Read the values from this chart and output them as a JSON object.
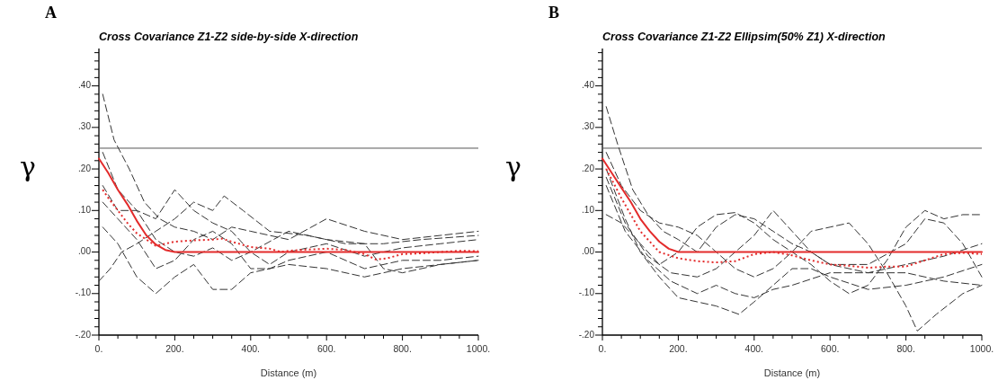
{
  "chart_data": [
    {
      "type": "line",
      "title": "Cross Covariance Z1-Z2 side-by-side X-direction",
      "xlabel": "Distance (m)",
      "ylabel": "γ",
      "annotations": [
        "A"
      ],
      "xlim": [
        0,
        1000
      ],
      "ylim": [
        -0.2,
        0.49
      ],
      "xticks": [
        {
          "value": 0,
          "label": "0."
        },
        {
          "value": 50,
          "label": null
        },
        {
          "value": 100,
          "label": null
        },
        {
          "value": 150,
          "label": null
        },
        {
          "value": 200,
          "label": "200."
        },
        {
          "value": 250,
          "label": null
        },
        {
          "value": 300,
          "label": null
        },
        {
          "value": 350,
          "label": null
        },
        {
          "value": 400,
          "label": "400."
        },
        {
          "value": 450,
          "label": null
        },
        {
          "value": 500,
          "label": null
        },
        {
          "value": 550,
          "label": null
        },
        {
          "value": 600,
          "label": "600."
        },
        {
          "value": 650,
          "label": null
        },
        {
          "value": 700,
          "label": null
        },
        {
          "value": 750,
          "label": null
        },
        {
          "value": 800,
          "label": "800."
        },
        {
          "value": 850,
          "label": null
        },
        {
          "value": 900,
          "label": null
        },
        {
          "value": 950,
          "label": null
        },
        {
          "value": 1000,
          "label": "1000."
        }
      ],
      "yticks": [
        {
          "value": -0.2,
          "label": "-.20"
        },
        {
          "value": -0.18,
          "label": null
        },
        {
          "value": -0.16,
          "label": null
        },
        {
          "value": -0.14,
          "label": null
        },
        {
          "value": -0.12,
          "label": null
        },
        {
          "value": -0.1,
          "label": "-.10"
        },
        {
          "value": -0.08,
          "label": null
        },
        {
          "value": -0.06,
          "label": null
        },
        {
          "value": -0.04,
          "label": null
        },
        {
          "value": -0.02,
          "label": null
        },
        {
          "value": 0,
          "label": ".00"
        },
        {
          "value": 0.02,
          "label": null
        },
        {
          "value": 0.04,
          "label": null
        },
        {
          "value": 0.06,
          "label": null
        },
        {
          "value": 0.08,
          "label": null
        },
        {
          "value": 0.1,
          "label": ".10"
        },
        {
          "value": 0.12,
          "label": null
        },
        {
          "value": 0.14,
          "label": null
        },
        {
          "value": 0.16,
          "label": null
        },
        {
          "value": 0.18,
          "label": null
        },
        {
          "value": 0.2,
          "label": ".20"
        },
        {
          "value": 0.22,
          "label": null
        },
        {
          "value": 0.24,
          "label": null
        },
        {
          "value": 0.26,
          "label": null
        },
        {
          "value": 0.28,
          "label": null
        },
        {
          "value": 0.3,
          "label": ".30"
        },
        {
          "value": 0.32,
          "label": null
        },
        {
          "value": 0.34,
          "label": null
        },
        {
          "value": 0.36,
          "label": null
        },
        {
          "value": 0.38,
          "label": null
        },
        {
          "value": 0.4,
          "label": ".40"
        },
        {
          "value": 0.42,
          "label": null
        },
        {
          "value": 0.44,
          "label": null
        },
        {
          "value": 0.46,
          "label": null
        },
        {
          "value": 0.48,
          "label": null
        }
      ],
      "ref_lines": [
        {
          "axis": "y",
          "value": 0.25,
          "color": "#555555",
          "line_style": "solid"
        }
      ],
      "series": [
        {
          "color": "#333333",
          "line_style": "dashed",
          "x": [
            10,
            40,
            80,
            120,
            160,
            200,
            250,
            300,
            350,
            400,
            500,
            600,
            700,
            800,
            900,
            1000
          ],
          "values": [
            0.38,
            0.27,
            0.2,
            0.12,
            0.08,
            0.06,
            0.05,
            0.03,
            0.06,
            0.05,
            0.03,
            0.08,
            0.05,
            0.03,
            0.04,
            0.05
          ]
        },
        {
          "color": "#333333",
          "line_style": "dashed",
          "x": [
            10,
            50,
            100,
            150,
            200,
            250,
            300,
            350,
            400,
            450,
            500,
            600,
            700,
            800,
            900,
            1000
          ],
          "values": [
            0.24,
            0.15,
            0.1,
            0.08,
            0.15,
            0.1,
            0.07,
            0.05,
            0.0,
            -0.03,
            0.0,
            0.02,
            -0.01,
            0.01,
            0.02,
            0.03
          ]
        },
        {
          "color": "#333333",
          "line_style": "dashed",
          "x": [
            10,
            50,
            100,
            150,
            200,
            250,
            300,
            350,
            400,
            500,
            600,
            700,
            800,
            900,
            1000
          ],
          "values": [
            0.06,
            0.02,
            -0.06,
            -0.1,
            -0.06,
            -0.03,
            -0.09,
            -0.09,
            -0.05,
            -0.03,
            -0.04,
            -0.06,
            -0.04,
            -0.03,
            -0.02
          ]
        },
        {
          "color": "#333333",
          "line_style": "dashed",
          "x": [
            0,
            30,
            60,
            100,
            150,
            200,
            250,
            300,
            330,
            380,
            450,
            550,
            650,
            750,
            850,
            1000
          ],
          "values": [
            -0.07,
            -0.04,
            0.0,
            0.02,
            0.05,
            0.08,
            0.12,
            0.1,
            0.135,
            0.1,
            0.05,
            0.04,
            0.02,
            0.02,
            0.03,
            0.04
          ]
        },
        {
          "color": "#333333",
          "line_style": "dashed",
          "x": [
            10,
            50,
            100,
            150,
            200,
            250,
            300,
            350,
            400,
            450,
            500,
            600,
            700,
            800,
            900,
            1000
          ],
          "values": [
            0.12,
            0.08,
            0.03,
            -0.04,
            -0.02,
            0.03,
            0.05,
            0.02,
            -0.04,
            -0.04,
            -0.02,
            0.0,
            -0.04,
            -0.02,
            -0.02,
            -0.01
          ]
        },
        {
          "color": "#333333",
          "line_style": "dashed",
          "x": [
            10,
            50,
            100,
            150,
            200,
            250,
            300,
            350,
            400,
            500,
            600,
            700,
            750,
            800,
            900,
            1000
          ],
          "values": [
            0.16,
            0.1,
            0.1,
            0.03,
            0.0,
            -0.01,
            0.01,
            -0.02,
            0.0,
            0.05,
            0.03,
            0.02,
            -0.04,
            -0.05,
            -0.03,
            -0.02
          ]
        },
        {
          "color": "#e32b2b",
          "line_style": "solid",
          "x": [
            0,
            25,
            50,
            75,
            100,
            125,
            150,
            175,
            200,
            1000
          ],
          "values": [
            0.225,
            0.19,
            0.15,
            0.115,
            0.075,
            0.04,
            0.018,
            0.005,
            0,
            0
          ]
        },
        {
          "color": "#e32b2b",
          "line_style": "dotted",
          "x": [
            10,
            25,
            50,
            75,
            100,
            125,
            150,
            175,
            200,
            250,
            300,
            325,
            350,
            400,
            450,
            480,
            500,
            550,
            600,
            650,
            700,
            730,
            760,
            800,
            850,
            900,
            950,
            1000
          ],
          "values": [
            0.15,
            0.13,
            0.1,
            0.07,
            0.045,
            0.03,
            0.015,
            0.02,
            0.025,
            0.028,
            0.03,
            0.032,
            0.025,
            0.012,
            0.008,
            0.0,
            0.003,
            0.006,
            0.008,
            0.005,
            -0.005,
            -0.018,
            -0.015,
            -0.005,
            -0.003,
            0.0,
            0.003,
            0.002
          ]
        }
      ]
    },
    {
      "type": "line",
      "title": "Cross Covariance Z1-Z2 Ellipsim(50% Z1) X-direction",
      "xlabel": "Distance (m)",
      "ylabel": "γ",
      "annotations": [
        "B"
      ],
      "xlim": [
        0,
        1000
      ],
      "ylim": [
        -0.2,
        0.49
      ],
      "xticks": [
        {
          "value": 0,
          "label": "0."
        },
        {
          "value": 50,
          "label": null
        },
        {
          "value": 100,
          "label": null
        },
        {
          "value": 150,
          "label": null
        },
        {
          "value": 200,
          "label": "200."
        },
        {
          "value": 250,
          "label": null
        },
        {
          "value": 300,
          "label": null
        },
        {
          "value": 350,
          "label": null
        },
        {
          "value": 400,
          "label": "400."
        },
        {
          "value": 450,
          "label": null
        },
        {
          "value": 500,
          "label": null
        },
        {
          "value": 550,
          "label": null
        },
        {
          "value": 600,
          "label": "600."
        },
        {
          "value": 650,
          "label": null
        },
        {
          "value": 700,
          "label": null
        },
        {
          "value": 750,
          "label": null
        },
        {
          "value": 800,
          "label": "800."
        },
        {
          "value": 850,
          "label": null
        },
        {
          "value": 900,
          "label": null
        },
        {
          "value": 950,
          "label": null
        },
        {
          "value": 1000,
          "label": "1000."
        }
      ],
      "yticks": [
        {
          "value": -0.2,
          "label": "-.20"
        },
        {
          "value": -0.18,
          "label": null
        },
        {
          "value": -0.16,
          "label": null
        },
        {
          "value": -0.14,
          "label": null
        },
        {
          "value": -0.12,
          "label": null
        },
        {
          "value": -0.1,
          "label": "-.10"
        },
        {
          "value": -0.08,
          "label": null
        },
        {
          "value": -0.06,
          "label": null
        },
        {
          "value": -0.04,
          "label": null
        },
        {
          "value": -0.02,
          "label": null
        },
        {
          "value": 0,
          "label": ".00"
        },
        {
          "value": 0.02,
          "label": null
        },
        {
          "value": 0.04,
          "label": null
        },
        {
          "value": 0.06,
          "label": null
        },
        {
          "value": 0.08,
          "label": null
        },
        {
          "value": 0.1,
          "label": ".10"
        },
        {
          "value": 0.12,
          "label": null
        },
        {
          "value": 0.14,
          "label": null
        },
        {
          "value": 0.16,
          "label": null
        },
        {
          "value": 0.18,
          "label": null
        },
        {
          "value": 0.2,
          "label": ".20"
        },
        {
          "value": 0.22,
          "label": null
        },
        {
          "value": 0.24,
          "label": null
        },
        {
          "value": 0.26,
          "label": null
        },
        {
          "value": 0.28,
          "label": null
        },
        {
          "value": 0.3,
          "label": ".30"
        },
        {
          "value": 0.32,
          "label": null
        },
        {
          "value": 0.34,
          "label": null
        },
        {
          "value": 0.36,
          "label": null
        },
        {
          "value": 0.38,
          "label": null
        },
        {
          "value": 0.4,
          "label": ".40"
        },
        {
          "value": 0.42,
          "label": null
        },
        {
          "value": 0.44,
          "label": null
        },
        {
          "value": 0.46,
          "label": null
        },
        {
          "value": 0.48,
          "label": null
        }
      ],
      "ref_lines": [
        {
          "axis": "y",
          "value": 0.25,
          "color": "#555555",
          "line_style": "solid"
        }
      ],
      "series": [
        {
          "color": "#333333",
          "line_style": "dashed",
          "x": [
            10,
            40,
            80,
            120,
            160,
            200,
            250,
            300,
            350,
            400,
            450,
            500,
            550,
            600,
            700,
            800,
            900,
            1000
          ],
          "values": [
            0.35,
            0.26,
            0.15,
            0.09,
            0.05,
            0.03,
            0.0,
            0.06,
            0.09,
            0.08,
            0.05,
            0.02,
            0.0,
            -0.03,
            -0.05,
            -0.05,
            -0.07,
            -0.08
          ]
        },
        {
          "color": "#333333",
          "line_style": "dashed",
          "x": [
            10,
            50,
            100,
            150,
            200,
            250,
            300,
            350,
            400,
            450,
            500,
            550,
            600,
            650,
            700,
            750,
            800,
            830,
            880,
            950,
            1000
          ],
          "values": [
            0.24,
            0.16,
            0.1,
            0.07,
            0.06,
            0.04,
            0.0,
            -0.04,
            -0.06,
            -0.04,
            0.0,
            0.05,
            0.06,
            0.07,
            0.02,
            -0.05,
            -0.13,
            -0.19,
            -0.15,
            -0.1,
            -0.08
          ]
        },
        {
          "color": "#333333",
          "line_style": "dashed",
          "x": [
            10,
            60,
            100,
            150,
            200,
            250,
            300,
            360,
            400,
            450,
            500,
            550,
            600,
            700,
            800,
            900,
            1000
          ],
          "values": [
            0.2,
            0.08,
            0.0,
            -0.06,
            -0.11,
            -0.12,
            -0.13,
            -0.15,
            -0.12,
            -0.08,
            -0.04,
            -0.04,
            -0.06,
            -0.09,
            -0.08,
            -0.06,
            -0.03
          ]
        },
        {
          "color": "#333333",
          "line_style": "dashed",
          "x": [
            10,
            50,
            100,
            150,
            200,
            250,
            300,
            350,
            400,
            450,
            500,
            550,
            600,
            650,
            700,
            750,
            800,
            850,
            900,
            950,
            1000
          ],
          "values": [
            0.09,
            0.07,
            0.02,
            -0.03,
            0.0,
            0.06,
            0.09,
            0.095,
            0.07,
            0.03,
            0.0,
            -0.03,
            -0.07,
            -0.1,
            -0.08,
            -0.02,
            0.06,
            0.1,
            0.08,
            0.09,
            0.09
          ]
        },
        {
          "color": "#333333",
          "line_style": "dashed",
          "x": [
            10,
            60,
            120,
            180,
            250,
            300,
            350,
            400,
            450,
            500,
            550,
            600,
            700,
            800,
            850,
            900,
            950,
            1000
          ],
          "values": [
            0.18,
            0.07,
            -0.01,
            -0.05,
            -0.06,
            -0.04,
            0.0,
            0.04,
            0.1,
            0.05,
            0.0,
            -0.03,
            -0.03,
            0.02,
            0.08,
            0.07,
            0.02,
            -0.06
          ]
        },
        {
          "color": "#333333",
          "line_style": "dashed",
          "x": [
            10,
            60,
            120,
            180,
            250,
            300,
            350,
            400,
            450,
            500,
            600,
            700,
            800,
            900,
            1000
          ],
          "values": [
            0.16,
            0.05,
            -0.02,
            -0.07,
            -0.1,
            -0.08,
            -0.1,
            -0.11,
            -0.09,
            -0.08,
            -0.05,
            -0.05,
            -0.03,
            -0.01,
            0.02
          ]
        },
        {
          "color": "#e32b2b",
          "line_style": "solid",
          "x": [
            0,
            25,
            50,
            75,
            100,
            125,
            150,
            175,
            200,
            1000
          ],
          "values": [
            0.225,
            0.19,
            0.155,
            0.12,
            0.08,
            0.05,
            0.025,
            0.008,
            0,
            0
          ]
        },
        {
          "color": "#e32b2b",
          "line_style": "dotted",
          "x": [
            10,
            50,
            100,
            150,
            200,
            250,
            300,
            350,
            400,
            450,
            500,
            550,
            600,
            650,
            700,
            750,
            800,
            850,
            900,
            950,
            1000
          ],
          "values": [
            0.2,
            0.13,
            0.05,
            0.0,
            -0.015,
            -0.022,
            -0.025,
            -0.022,
            -0.005,
            0.0,
            -0.008,
            -0.02,
            -0.03,
            -0.033,
            -0.038,
            -0.035,
            -0.035,
            -0.02,
            -0.005,
            -0.002,
            -0.005
          ]
        }
      ]
    }
  ]
}
